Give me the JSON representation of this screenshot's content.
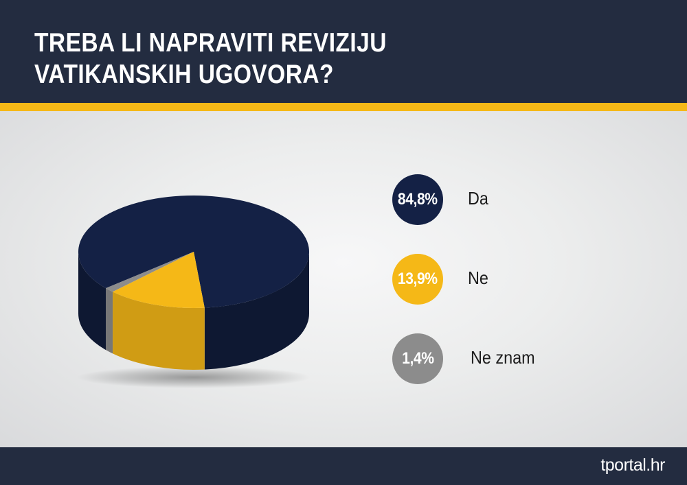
{
  "header": {
    "title": "TREBA LI NAPRAVITI REVIZIJU VATIKANSKIH UGOVORA?"
  },
  "footer": {
    "brand": "tportal.hr"
  },
  "colors": {
    "header_bg": "#232c40",
    "accent_stripe": "#f5b817",
    "da": "#142145",
    "ne": "#f5b817",
    "ne_znam": "#8c8c8c"
  },
  "chart_data": {
    "type": "pie",
    "title": "TREBA LI NAPRAVITI REVIZIJU VATIKANSKIH UGOVORA?",
    "style": "3d",
    "legend_position": "right",
    "categories": [
      "Da",
      "Ne",
      "Ne znam"
    ],
    "values": [
      84.8,
      13.9,
      1.4
    ],
    "value_labels": [
      "84,8%",
      "13,9%",
      "1,4%"
    ],
    "colors": [
      "#142145",
      "#f5b817",
      "#8c8c8c"
    ]
  }
}
